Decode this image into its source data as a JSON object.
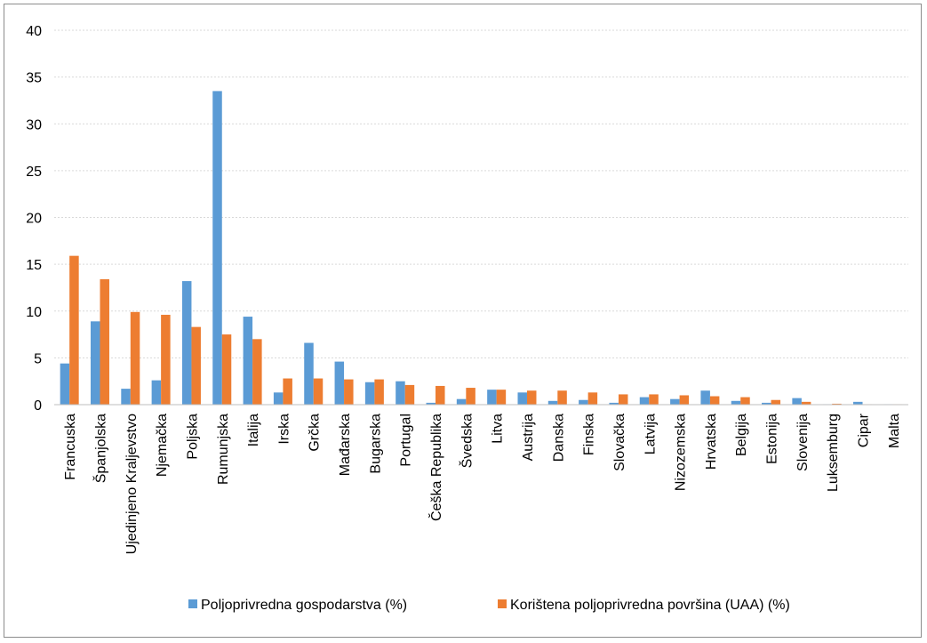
{
  "chart_data": {
    "type": "bar",
    "title": "",
    "xlabel": "",
    "ylabel": "",
    "ylim": [
      0,
      40
    ],
    "yticks": [
      0,
      5,
      10,
      15,
      20,
      25,
      30,
      35,
      40
    ],
    "grid": true,
    "legend_position": "bottom",
    "categories": [
      "Francuska",
      "Španjolska",
      "Ujedinjeno Kraljevstvo",
      "Njemačka",
      "Poljska",
      "Rumunjska",
      "Italija",
      "Irska",
      "Grčka",
      "Mađarska",
      "Bugarska",
      "Portugal",
      "Češka Republika",
      "Švedska",
      "Litva",
      "Austrija",
      "Danska",
      "Finska",
      "Slovačka",
      "Latvija",
      "Nizozemska",
      "Hrvatska",
      "Belgija",
      "Estonija",
      "Slovenija",
      "Luksemburg",
      "Cipar",
      "Malta"
    ],
    "series": [
      {
        "name": "Poljoprivredna gospodarstva (%)",
        "color": "#5B9BD5",
        "values": [
          4.4,
          8.9,
          1.7,
          2.6,
          13.2,
          33.5,
          9.4,
          1.3,
          6.6,
          4.6,
          2.4,
          2.5,
          0.2,
          0.6,
          1.6,
          1.3,
          0.4,
          0.5,
          0.2,
          0.8,
          0.6,
          1.5,
          0.4,
          0.2,
          0.7,
          0.05,
          0.3,
          0.05
        ]
      },
      {
        "name": "Korištena poljoprivredna površina (UAA) (%)",
        "color": "#ED7D31",
        "values": [
          15.9,
          13.4,
          9.9,
          9.6,
          8.3,
          7.5,
          7.0,
          2.8,
          2.8,
          2.7,
          2.7,
          2.1,
          2.0,
          1.8,
          1.6,
          1.5,
          1.5,
          1.3,
          1.1,
          1.1,
          1.0,
          0.9,
          0.8,
          0.5,
          0.3,
          0.1,
          0.05,
          0.05
        ]
      }
    ]
  }
}
